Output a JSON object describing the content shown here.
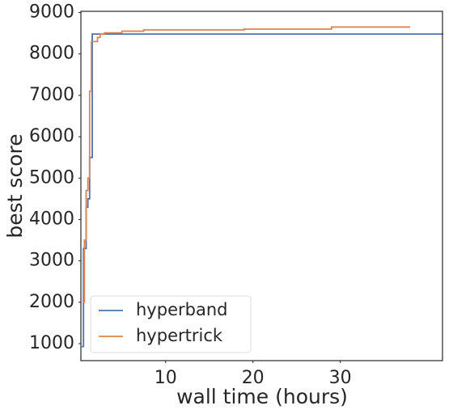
{
  "chart_data": {
    "type": "line",
    "step": "post",
    "xlabel": "wall time (hours)",
    "ylabel": "best score",
    "xlim": [
      0.3,
      41.7
    ],
    "ylim": [
      590,
      9030
    ],
    "xticks": [
      10,
      20,
      30
    ],
    "yticks": [
      1000,
      2000,
      3000,
      4000,
      5000,
      6000,
      7000,
      8000,
      9000
    ],
    "grid": false,
    "legend": "lower left",
    "series": [
      {
        "name": "hyperband",
        "color": "#4c72b0",
        "x": [
          0.4,
          0.6,
          0.9,
          1.1,
          1.3,
          1.6,
          41.7
        ],
        "values": [
          930,
          3300,
          4300,
          4500,
          5500,
          8480,
          8500
        ]
      },
      {
        "name": "hypertrick",
        "color": "#dd8452",
        "x": [
          0.5,
          0.7,
          0.9,
          1.1,
          1.3,
          1.5,
          2.2,
          2.5,
          3,
          5,
          7.5,
          19,
          29,
          38
        ],
        "values": [
          2000,
          3500,
          4700,
          5000,
          7100,
          8300,
          8400,
          8480,
          8510,
          8550,
          8580,
          8600,
          8650,
          8650
        ]
      }
    ]
  }
}
